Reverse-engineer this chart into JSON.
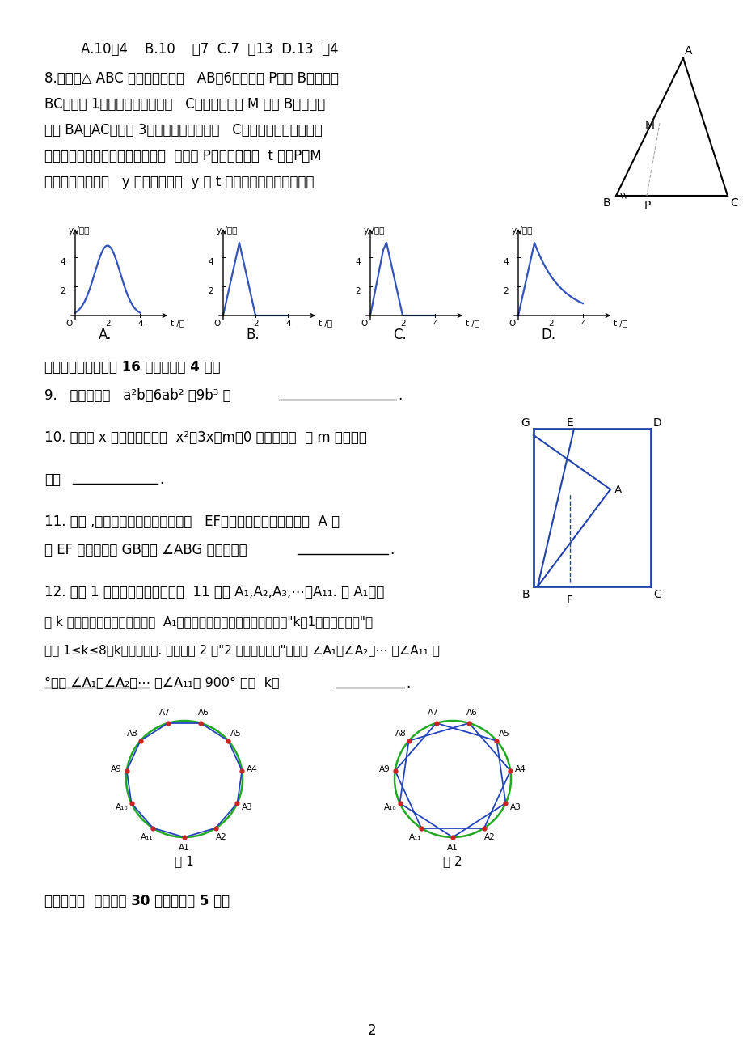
{
  "bg_color": "#ffffff",
  "page_width": 9.2,
  "page_height": 13.03,
  "dpi": 100
}
